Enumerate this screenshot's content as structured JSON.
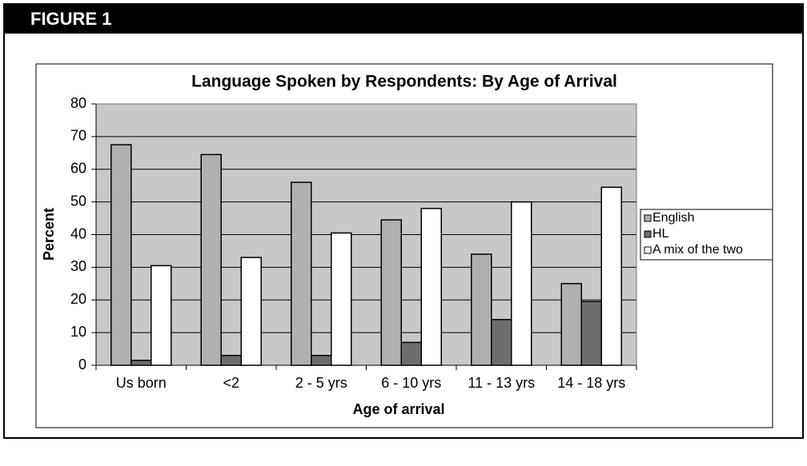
{
  "figure_label": "FIGURE 1",
  "chart_data": {
    "type": "bar",
    "title": "Language Spoken by Respondents: By Age of Arrival",
    "x_label": "Age of arrival",
    "y_label": "Percent",
    "categories": [
      "Us born",
      "<2",
      "2 - 5 yrs",
      "6 - 10 yrs",
      "11 - 13 yrs",
      "14 - 18 yrs"
    ],
    "series": [
      {
        "name": "English",
        "color": "#b0b0b0",
        "values": [
          67.5,
          64.5,
          56,
          44.5,
          34,
          25
        ]
      },
      {
        "name": "HL",
        "color": "#6e6e6e",
        "values": [
          1.5,
          3,
          3,
          7,
          14,
          19.5
        ]
      },
      {
        "name": "A mix of the two",
        "color": "#ffffff",
        "values": [
          30.5,
          33,
          40.5,
          48,
          50,
          54.5
        ]
      }
    ],
    "ylim": [
      0,
      80
    ],
    "yticks": [
      0,
      10,
      20,
      30,
      40,
      50,
      60,
      70,
      80
    ],
    "grid": true,
    "legend": "right"
  }
}
